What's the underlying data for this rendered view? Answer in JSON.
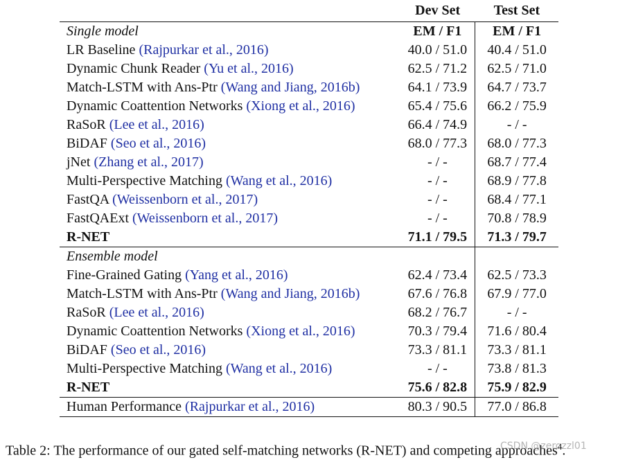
{
  "header": {
    "dev_set": "Dev Set",
    "test_set": "Test Set"
  },
  "single": {
    "title": "Single model",
    "dev_metric": "EM / F1",
    "test_metric": "EM / F1",
    "rows": [
      {
        "name": "LR Baseline ",
        "cite": "(Rajpurkar et al., 2016)",
        "dev": "40.0 / 51.0",
        "test": "40.4 / 51.0"
      },
      {
        "name": "Dynamic Chunk Reader ",
        "cite": "(Yu et al., 2016)",
        "dev": "62.5 / 71.2",
        "test": "62.5 / 71.0"
      },
      {
        "name": "Match-LSTM with Ans-Ptr ",
        "cite": "(Wang and Jiang, 2016b)",
        "dev": "64.1 / 73.9",
        "test": "64.7 / 73.7"
      },
      {
        "name": "Dynamic Coattention Networks ",
        "cite": "(Xiong et al., 2016)",
        "dev": "65.4 / 75.6",
        "test": "66.2 / 75.9"
      },
      {
        "name": "RaSoR ",
        "cite": "(Lee et al., 2016)",
        "dev": "66.4 / 74.9",
        "test": "- / -"
      },
      {
        "name": "BiDAF ",
        "cite": "(Seo et al., 2016)",
        "dev": "68.0 / 77.3",
        "test": "68.0 / 77.3"
      },
      {
        "name": "jNet ",
        "cite": "(Zhang et al., 2017)",
        "dev": "- / -",
        "test": "68.7 / 77.4"
      },
      {
        "name": "Multi-Perspective Matching ",
        "cite": "(Wang et al., 2016)",
        "dev": "- / -",
        "test": "68.9 / 77.8"
      },
      {
        "name": "FastQA ",
        "cite": "(Weissenborn et al., 2017)",
        "dev": "- / -",
        "test": "68.4 / 77.1"
      },
      {
        "name": "FastQAExt ",
        "cite": "(Weissenborn et al., 2017)",
        "dev": "- / -",
        "test": "70.8 / 78.9"
      }
    ],
    "rnet": {
      "name": "R-NET",
      "dev": "71.1 / 79.5",
      "test": "71.3 / 79.7"
    }
  },
  "ensemble": {
    "title": "Ensemble model",
    "rows": [
      {
        "name": "Fine-Grained Gating ",
        "cite": "(Yang et al., 2016)",
        "dev": "62.4 / 73.4",
        "test": "62.5 / 73.3"
      },
      {
        "name": "Match-LSTM with Ans-Ptr ",
        "cite": "(Wang and Jiang, 2016b)",
        "dev": "67.6 / 76.8",
        "test": "67.9 / 77.0"
      },
      {
        "name": "RaSoR ",
        "cite": "(Lee et al., 2016)",
        "dev": "68.2 / 76.7",
        "test": "- / -"
      },
      {
        "name": "Dynamic Coattention Networks ",
        "cite": "(Xiong et al., 2016)",
        "dev": "70.3 / 79.4",
        "test": "71.6 / 80.4"
      },
      {
        "name": "BiDAF ",
        "cite": "(Seo et al., 2016)",
        "dev": "73.3 / 81.1",
        "test": "73.3 / 81.1"
      },
      {
        "name": "Multi-Perspective Matching ",
        "cite": "(Wang et al., 2016)",
        "dev": "- / -",
        "test": "73.8 / 81.3"
      }
    ],
    "rnet": {
      "name": "R-NET",
      "dev": "75.6 / 82.8",
      "test": "75.9 / 82.9"
    }
  },
  "human": {
    "name": "Human Performance ",
    "cite": "(Rajpurkar et al., 2016)",
    "dev": "80.3 / 90.5",
    "test": "77.0 / 86.8"
  },
  "caption": "Table 2: The performance of our gated self-matching networks (R-NET) and competing approaches",
  "caption_footnote": "4",
  "caption_end": ".",
  "watermark": "CSDN @zerozzl01"
}
